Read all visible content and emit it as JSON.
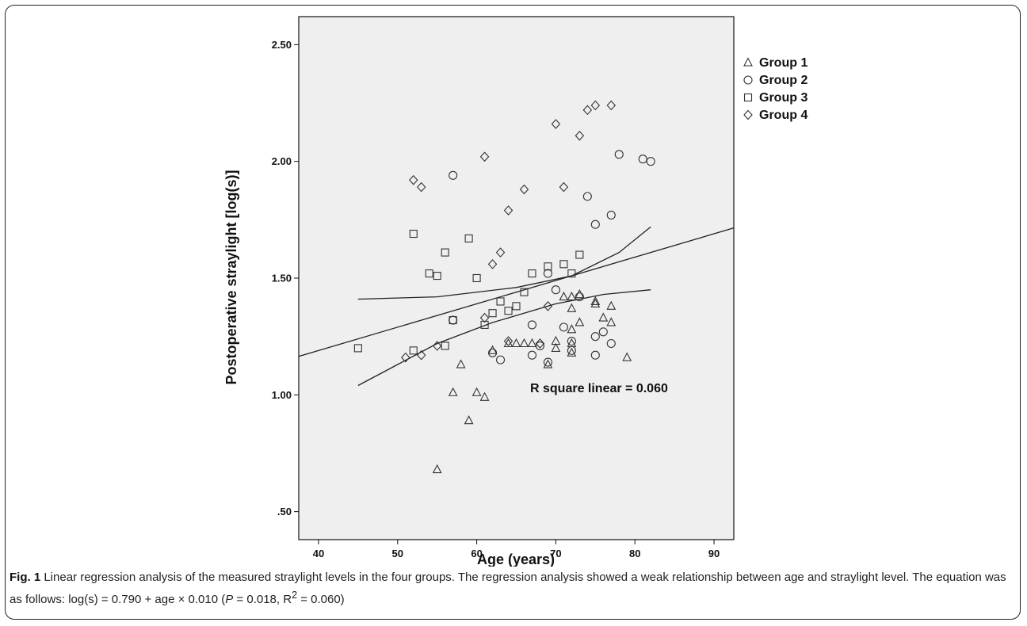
{
  "chart_data": {
    "type": "scatter",
    "xlabel": "Age (years)",
    "ylabel": "Postoperative straylight [log(s)]",
    "xlim": [
      37.5,
      92.5
    ],
    "ylim": [
      0.38,
      2.62
    ],
    "x_ticks": [
      40,
      50,
      60,
      70,
      80,
      90
    ],
    "x_tick_labels": [
      "40",
      "50",
      "60",
      "70",
      "80",
      "90"
    ],
    "y_ticks": [
      0.5,
      1.0,
      1.5,
      2.0,
      2.5
    ],
    "y_tick_labels": [
      ".50",
      "1.00",
      "1.50",
      "2.00",
      "2.50"
    ],
    "legend_position": "right",
    "grid": false,
    "annotation": "R square linear  = 0.060",
    "plot_background": "#efefef",
    "series": [
      {
        "name": "Group 1",
        "marker": "triangle",
        "legend_symbol": "△",
        "points": [
          [
            55,
            0.68
          ],
          [
            57,
            1.01
          ],
          [
            58,
            1.13
          ],
          [
            59,
            0.89
          ],
          [
            60,
            1.01
          ],
          [
            61,
            0.99
          ],
          [
            62,
            1.19
          ],
          [
            64,
            1.22
          ],
          [
            65,
            1.22
          ],
          [
            66,
            1.22
          ],
          [
            67,
            1.22
          ],
          [
            69,
            1.13
          ],
          [
            70,
            1.2
          ],
          [
            70,
            1.23
          ],
          [
            71,
            1.42
          ],
          [
            72,
            1.18
          ],
          [
            72,
            1.22
          ],
          [
            72,
            1.28
          ],
          [
            72,
            1.37
          ],
          [
            72,
            1.42
          ],
          [
            73,
            1.31
          ],
          [
            73,
            1.43
          ],
          [
            75,
            1.39
          ],
          [
            75,
            1.4
          ],
          [
            76,
            1.33
          ],
          [
            77,
            1.31
          ],
          [
            77,
            1.38
          ],
          [
            79,
            1.16
          ]
        ]
      },
      {
        "name": "Group 2",
        "marker": "circle",
        "legend_symbol": "○",
        "points": [
          [
            57,
            1.94
          ],
          [
            57,
            1.32
          ],
          [
            62,
            1.18
          ],
          [
            63,
            1.15
          ],
          [
            67,
            1.17
          ],
          [
            67,
            1.3
          ],
          [
            68,
            1.21
          ],
          [
            69,
            1.14
          ],
          [
            69,
            1.52
          ],
          [
            70,
            1.45
          ],
          [
            71,
            1.29
          ],
          [
            72,
            1.19
          ],
          [
            72,
            1.23
          ],
          [
            73,
            1.42
          ],
          [
            74,
            1.85
          ],
          [
            75,
            1.17
          ],
          [
            75,
            1.25
          ],
          [
            75,
            1.73
          ],
          [
            76,
            1.27
          ],
          [
            77,
            1.22
          ],
          [
            77,
            1.77
          ],
          [
            78,
            2.03
          ],
          [
            81,
            2.01
          ],
          [
            82,
            2.0
          ]
        ]
      },
      {
        "name": "Group 3",
        "marker": "square",
        "legend_symbol": "□",
        "points": [
          [
            45,
            1.2
          ],
          [
            52,
            1.19
          ],
          [
            52,
            1.69
          ],
          [
            54,
            1.52
          ],
          [
            55,
            1.51
          ],
          [
            56,
            1.21
          ],
          [
            56,
            1.61
          ],
          [
            57,
            1.32
          ],
          [
            59,
            1.67
          ],
          [
            60,
            1.5
          ],
          [
            61,
            1.3
          ],
          [
            62,
            1.35
          ],
          [
            63,
            1.4
          ],
          [
            64,
            1.36
          ],
          [
            65,
            1.38
          ],
          [
            66,
            1.44
          ],
          [
            67,
            1.52
          ],
          [
            69,
            1.55
          ],
          [
            71,
            1.56
          ],
          [
            72,
            1.52
          ],
          [
            73,
            1.6
          ]
        ]
      },
      {
        "name": "Group 4",
        "marker": "diamond",
        "legend_symbol": "◇",
        "points": [
          [
            51,
            1.16
          ],
          [
            52,
            1.92
          ],
          [
            53,
            1.89
          ],
          [
            53,
            1.17
          ],
          [
            55,
            1.21
          ],
          [
            61,
            2.02
          ],
          [
            61,
            1.33
          ],
          [
            62,
            1.56
          ],
          [
            63,
            1.61
          ],
          [
            64,
            1.79
          ],
          [
            64,
            1.23
          ],
          [
            66,
            1.88
          ],
          [
            68,
            1.22
          ],
          [
            69,
            1.38
          ],
          [
            70,
            2.16
          ],
          [
            71,
            1.89
          ],
          [
            73,
            2.11
          ],
          [
            74,
            2.22
          ],
          [
            75,
            2.24
          ],
          [
            77,
            2.24
          ]
        ]
      }
    ],
    "regression_line": {
      "intercept": 0.79,
      "slope": 0.01,
      "x_range": [
        37.5,
        92.5
      ]
    },
    "confidence_band": {
      "upper": [
        [
          45,
          1.41
        ],
        [
          55,
          1.42
        ],
        [
          65,
          1.46
        ],
        [
          72,
          1.51
        ],
        [
          78,
          1.61
        ],
        [
          82,
          1.72
        ]
      ],
      "lower": [
        [
          45,
          1.04
        ],
        [
          50,
          1.13
        ],
        [
          55,
          1.22
        ],
        [
          62,
          1.31
        ],
        [
          70,
          1.39
        ],
        [
          76,
          1.43
        ],
        [
          82,
          1.45
        ]
      ]
    }
  },
  "caption": {
    "label": "Fig. 1",
    "text": "Linear regression analysis of the measured straylight levels in the four groups. The regression analysis showed a weak relationship between age and straylight level. The equation was as follows: log(s) = 0.790 + age × 0.010 (",
    "p_symbol": "P",
    "p_stat": " = 0.018, R",
    "r_sup": "2",
    "r_stat": " = 0.060)"
  }
}
